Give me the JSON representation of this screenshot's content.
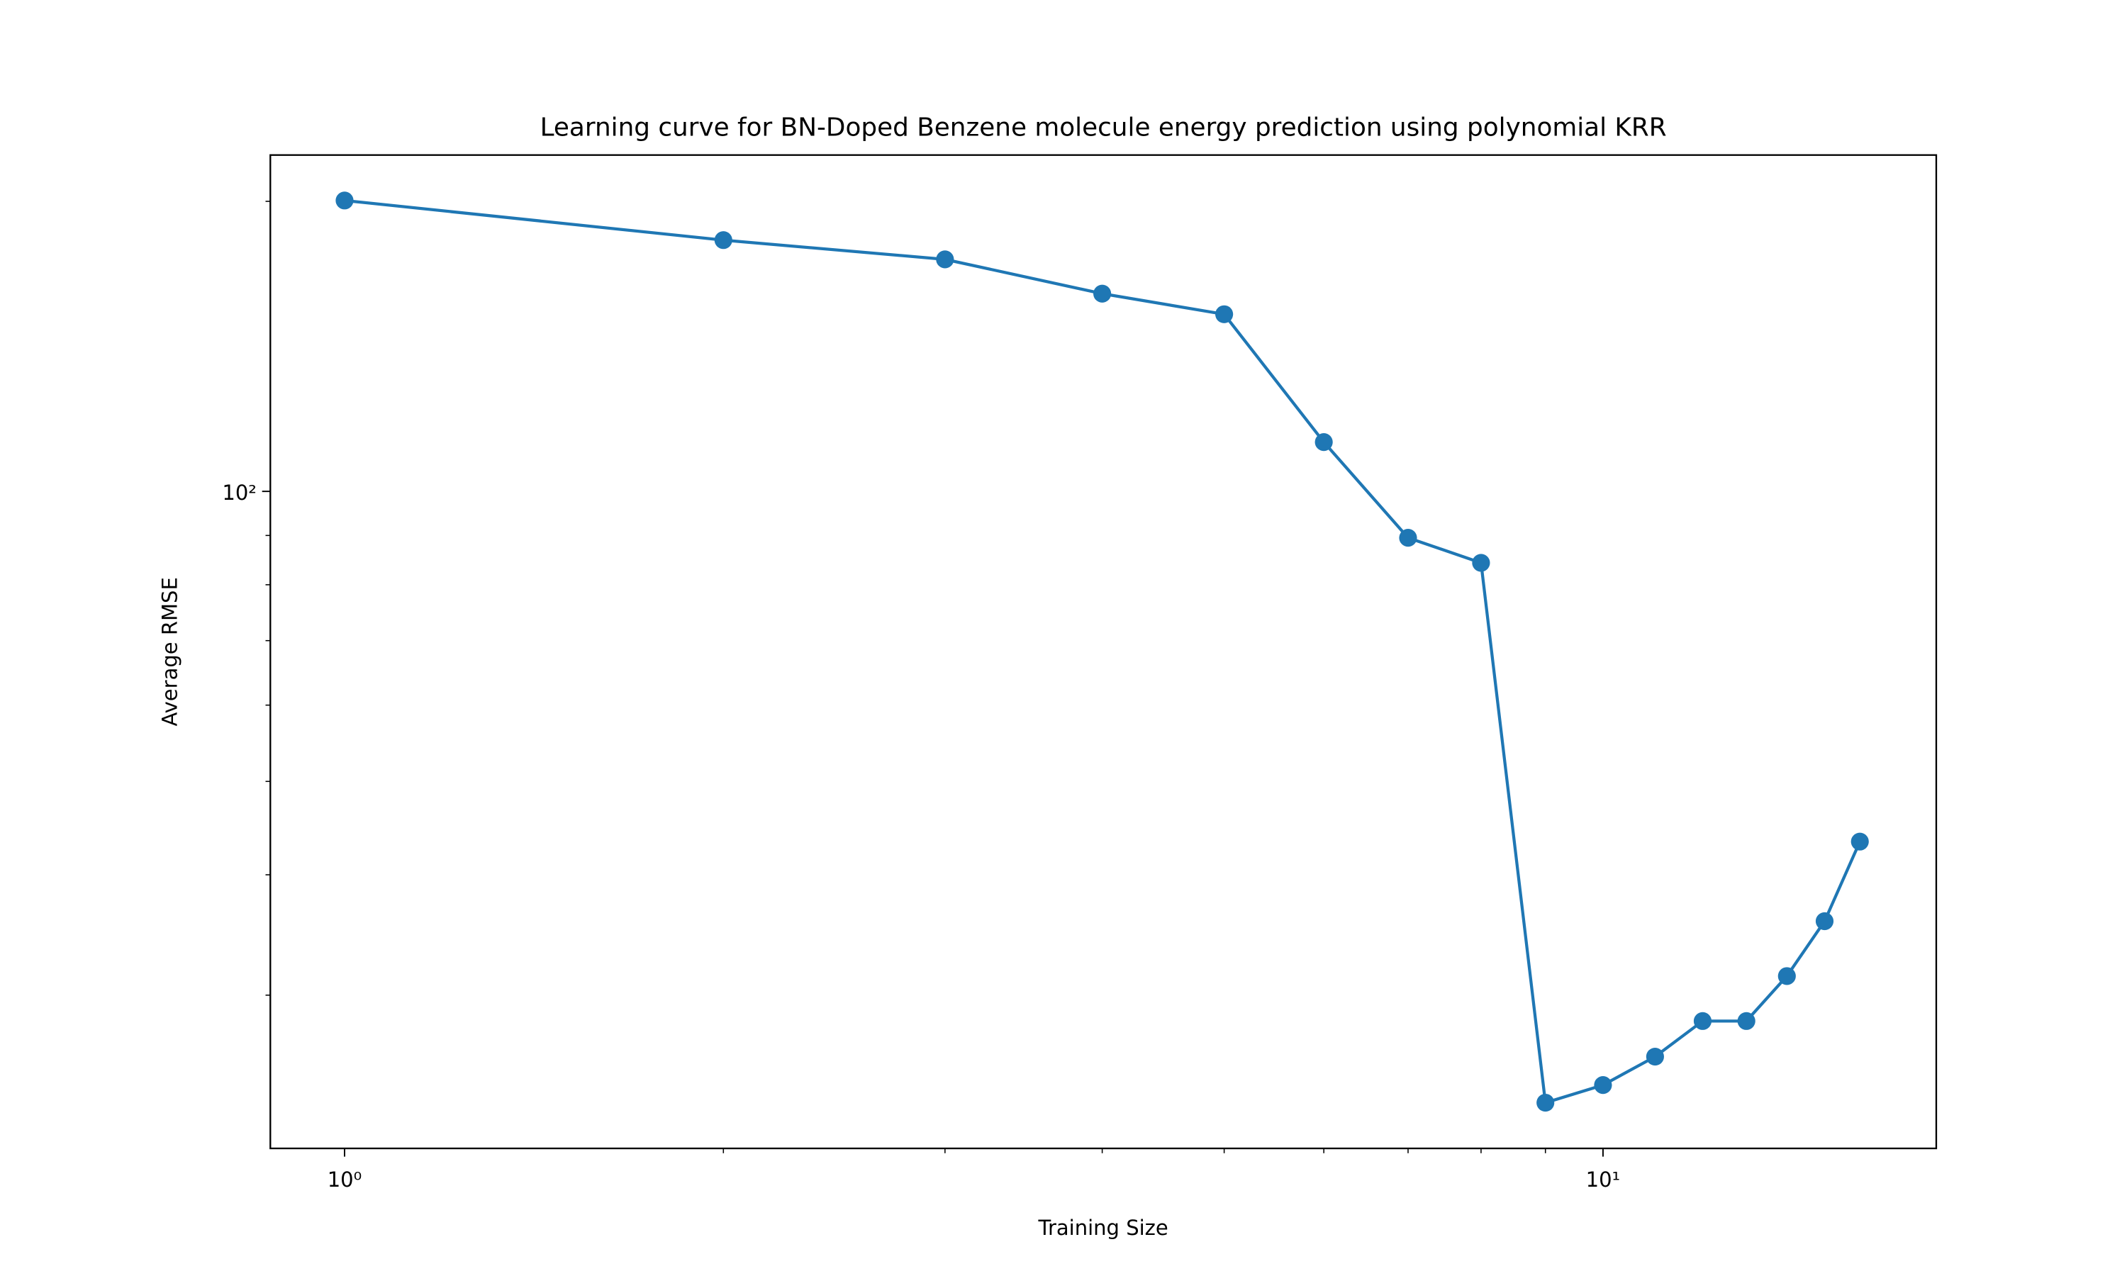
{
  "chart_data": {
    "type": "line",
    "title": "Learning curve for BN-Doped Benzene molecule energy prediction using polynomial KRR",
    "x_label": "Training Size",
    "y_label": "Average RMSE",
    "x": [
      1,
      2,
      3,
      4,
      5,
      6,
      7,
      8,
      9,
      10,
      11,
      12,
      13,
      14,
      15,
      16
    ],
    "series": [
      {
        "color": "#1f77b4",
        "marker": "o",
        "values": [
          200.4,
          182.3,
          174.1,
          160.4,
          152.7,
          112.5,
          89.5,
          84.3,
          23.2,
          24.2,
          25.9,
          28.2,
          28.2,
          31.4,
          35.8,
          43.3
        ]
      }
    ],
    "xscale": "log",
    "yscale": "log",
    "xlim": [
      0.873,
      18.4
    ],
    "ylim": [
      20.8,
      223.4
    ],
    "xticks": [
      {
        "value": 1,
        "label": "10⁰"
      },
      {
        "value": 10,
        "label": "10¹"
      }
    ],
    "xminorticks": [
      2,
      3,
      4,
      5,
      6,
      7,
      8,
      9
    ],
    "yticks": [
      {
        "value": 100,
        "label": "10²"
      }
    ],
    "yminorticks": [
      30,
      40,
      50,
      60,
      70,
      80,
      90,
      200
    ],
    "grid": false
  }
}
